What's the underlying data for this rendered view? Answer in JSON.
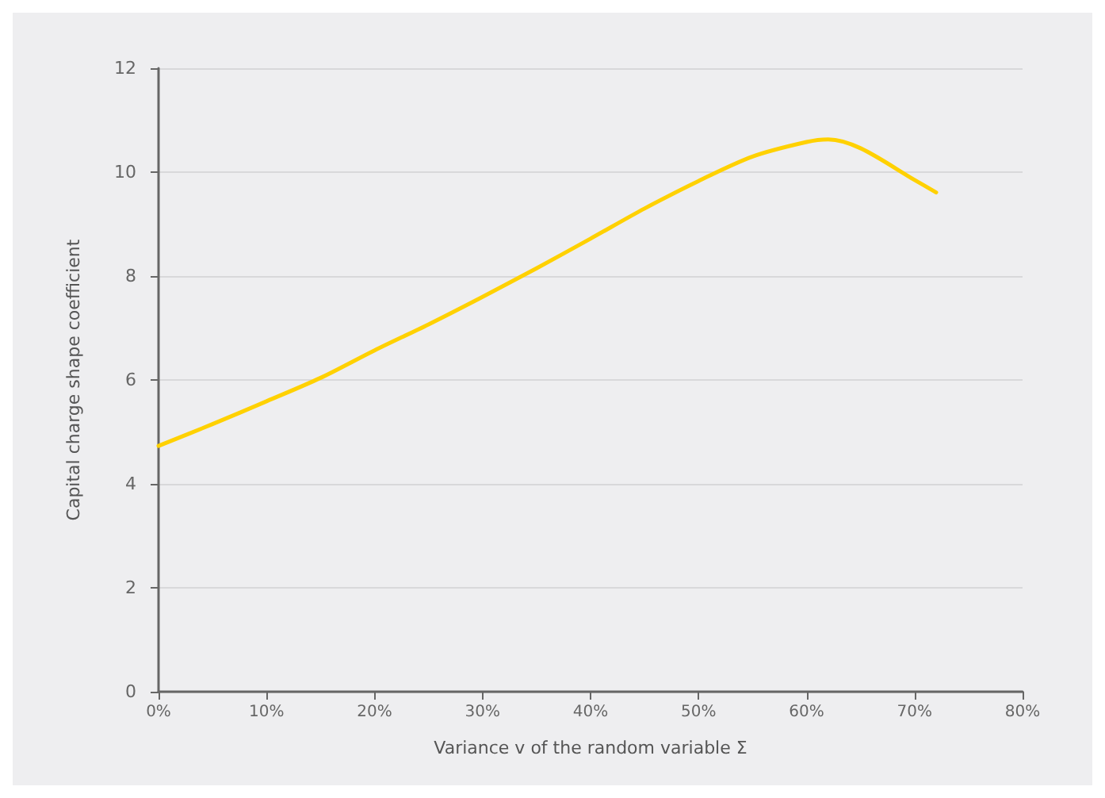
{
  "chart_data": {
    "type": "line",
    "xlabel": "Variance v of the random variable Σ",
    "ylabel": "Capital charge shape coefficient",
    "x": [
      0,
      5,
      10,
      15,
      20,
      25,
      30,
      35,
      40,
      45,
      50,
      55,
      60,
      62,
      65,
      70,
      72
    ],
    "series": [
      {
        "color": "#ffd100",
        "values": [
          4.73,
          5.15,
          5.59,
          6.04,
          6.57,
          7.07,
          7.6,
          8.15,
          8.72,
          9.3,
          9.83,
          10.3,
          10.58,
          10.63,
          10.46,
          9.85,
          9.61
        ]
      }
    ],
    "xlim": [
      0,
      80
    ],
    "xticks": [
      {
        "value": 0,
        "label": "0%"
      },
      {
        "value": 10,
        "label": "10%"
      },
      {
        "value": 20,
        "label": "20%"
      },
      {
        "value": 30,
        "label": "30%"
      },
      {
        "value": 40,
        "label": "40%"
      },
      {
        "value": 50,
        "label": "50%"
      },
      {
        "value": 60,
        "label": "60%"
      },
      {
        "value": 70,
        "label": "70%"
      },
      {
        "value": 80,
        "label": "80%"
      }
    ],
    "ylim": [
      0,
      12
    ],
    "yticks": [
      0,
      2,
      4,
      6,
      8,
      10,
      12
    ],
    "grid": "y",
    "marker": "none",
    "line_style": "solid"
  }
}
